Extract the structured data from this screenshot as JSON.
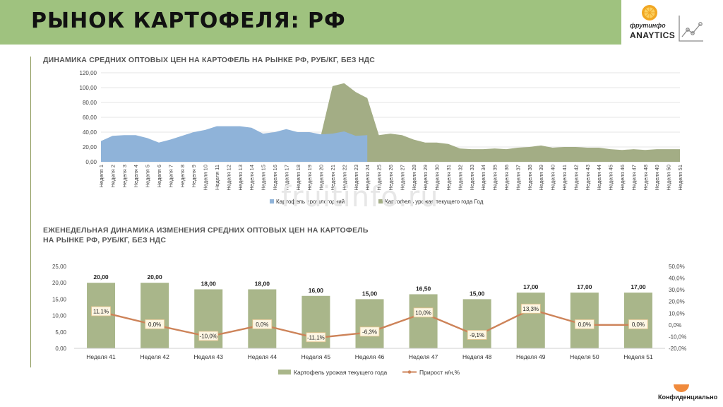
{
  "header": {
    "title": "РЫНОК КАРТОФЕЛЯ: РФ",
    "logo_brand": "фрутинфо",
    "logo_sub": "ANAYTICS"
  },
  "watermark": "fruitinfo.ru",
  "footer": {
    "confidential": "Конфиденциально"
  },
  "colors": {
    "header_bg": "#9fc27f",
    "blue_area": "#8fb3d9",
    "olive_area": "#a3ad85",
    "bar": "#a9b68a",
    "line": "#cd8359"
  },
  "chart_data": [
    {
      "type": "area",
      "title": "ДИНАМИКА СРЕДНИХ ОПТОВЫХ ЦЕН НА КАРТОФЕЛЬ НА РЫНКЕ РФ, РУБ/КГ, БЕЗ НДС",
      "ylim": [
        0,
        120
      ],
      "yticks": [
        "0,00",
        "20,00",
        "40,00",
        "60,00",
        "80,00",
        "100,00",
        "120,00"
      ],
      "categories": [
        "Неделя 1",
        "Неделя 2",
        "Неделя 3",
        "Неделя 4",
        "Неделя 5",
        "Неделя 6",
        "Неделя 7",
        "Неделя 8",
        "Неделя 9",
        "Неделя 10",
        "Неделя 11",
        "Неделя 12",
        "Неделя 13",
        "Неделя 14",
        "Неделя 15",
        "Неделя 16",
        "Неделя 17",
        "Неделя 18",
        "Неделя 19",
        "Неделя 20",
        "Неделя 21",
        "Неделя 22",
        "Неделя 23",
        "Неделя 24",
        "Неделя 25",
        "Неделя 26",
        "Неделя 27",
        "Неделя 28",
        "Неделя 29",
        "Неделя 30",
        "Неделя 31",
        "Неделя 32",
        "Неделя 33",
        "Неделя 34",
        "Неделя 35",
        "Неделя 36",
        "Неделя 37",
        "Неделя 38",
        "Неделя 39",
        "Неделя 40",
        "Неделя 41",
        "Неделя 42",
        "Неделя 43",
        "Неделя 44",
        "Неделя 45",
        "Неделя 46",
        "Неделя 47",
        "Неделя 48",
        "Неделя 49",
        "Неделя 50",
        "Неделя 51"
      ],
      "series": [
        {
          "name": "Картофель прошлогодний",
          "color": "#8fb3d9",
          "values": [
            28,
            35,
            36,
            36,
            32,
            26,
            30,
            35,
            40,
            43,
            48,
            48,
            48,
            46,
            38,
            40,
            44,
            40,
            40,
            37,
            38,
            41,
            35,
            36,
            null,
            null,
            null,
            null,
            null,
            null,
            null,
            null,
            null,
            null,
            null,
            null,
            null,
            null,
            null,
            null,
            null,
            null,
            null,
            null,
            null,
            null,
            null,
            null,
            null,
            null,
            null
          ]
        },
        {
          "name": "Картофель урожая текущего года Год",
          "color": "#a3ad85",
          "values": [
            null,
            null,
            null,
            null,
            null,
            null,
            null,
            null,
            null,
            null,
            null,
            null,
            null,
            null,
            null,
            null,
            null,
            null,
            null,
            36,
            102,
            106,
            94,
            86,
            36,
            38,
            36,
            30,
            26,
            26,
            24,
            18,
            17,
            17,
            18,
            17,
            19,
            20,
            22,
            19,
            20,
            20,
            19,
            19,
            17,
            16,
            17,
            16,
            17,
            17,
            17
          ]
        }
      ]
    },
    {
      "type": "bar",
      "title_line1": "ЕЖЕНЕДЕЛЬНАЯ ДИНАМИКА ИЗМЕНЕНИЯ СРЕДНИХ ОПТОВЫХ ЦЕН НА КАРТОФЕЛЬ",
      "title_line2": "НА РЫНКЕ РФ, РУБ/КГ, БЕЗ НДС",
      "ylim": [
        0,
        25
      ],
      "y2lim": [
        -20,
        50
      ],
      "yticks": [
        "0,00",
        "5,00",
        "10,00",
        "15,00",
        "20,00",
        "25,00"
      ],
      "y2ticks": [
        "-20,0%",
        "-10,0%",
        "0,0%",
        "10,0%",
        "20,0%",
        "30,0%",
        "40,0%",
        "50,0%"
      ],
      "categories": [
        "Неделя 41",
        "Неделя 42",
        "Неделя 43",
        "Неделя 44",
        "Неделя 45",
        "Неделя 46",
        "Неделя 47",
        "Неделя 48",
        "Неделя 49",
        "Неделя 50",
        "Неделя 51"
      ],
      "series": [
        {
          "name": "Картофель урожая текущего года",
          "color": "#a9b68a",
          "values": [
            20,
            20,
            18,
            18,
            16,
            15,
            16.5,
            15,
            17,
            17,
            17
          ],
          "labels": [
            "20,00",
            "20,00",
            "18,00",
            "18,00",
            "16,00",
            "15,00",
            "16,50",
            "15,00",
            "17,00",
            "17,00",
            "17,00"
          ]
        },
        {
          "name": "Прирост н/н,%",
          "color": "#cd8359",
          "values": [
            11.1,
            0,
            -10,
            0,
            -11.1,
            -6.3,
            10,
            -9.1,
            13.3,
            0,
            0
          ],
          "labels": [
            "11,1%",
            "0,0%",
            "-10,0%",
            "0,0%",
            "-11,1%",
            "-6,3%",
            "10,0%",
            "-9,1%",
            "13,3%",
            "0,0%",
            "0,0%"
          ]
        }
      ]
    }
  ]
}
